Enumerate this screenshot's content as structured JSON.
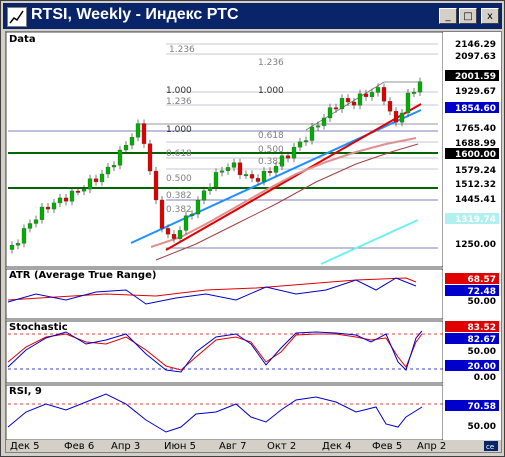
{
  "window": {
    "title": "RTSI, Weekly - Индекс РТС",
    "minimize_glyph": "_",
    "maximize_glyph": "□",
    "close_glyph": "x"
  },
  "panels": {
    "data": {
      "label": "Data"
    },
    "atr": {
      "label": "ATR (Average True Range)"
    },
    "stochastic": {
      "label": "Stochastic"
    },
    "rsi": {
      "label": "RSI, 9"
    }
  },
  "fib_labels": [
    {
      "text": "1.236"
    },
    {
      "text": "1.236"
    },
    {
      "text": "1.000"
    },
    {
      "text": "1.236"
    },
    {
      "text": "1.000"
    },
    {
      "text": "1.000"
    },
    {
      "text": "0.618"
    },
    {
      "text": "0.500"
    },
    {
      "text": "0.618"
    },
    {
      "text": "0.382"
    },
    {
      "text": "0.500"
    },
    {
      "text": "0.382"
    },
    {
      "text": "0.382"
    }
  ],
  "price_axis": {
    "labels": [
      {
        "text": "2146.29",
        "style": "plain"
      },
      {
        "text": "2097.63",
        "style": "plain"
      },
      {
        "text": "2001.59",
        "style": "black"
      },
      {
        "text": "1929.67",
        "style": "plain"
      },
      {
        "text": "1854.60",
        "style": "blue"
      },
      {
        "text": "1765.40",
        "style": "plain"
      },
      {
        "text": "1688.99",
        "style": "plain"
      },
      {
        "text": "1600.00",
        "style": "black"
      },
      {
        "text": "1579.24",
        "style": "plain"
      },
      {
        "text": "1512.32",
        "style": "plain"
      },
      {
        "text": "1445.41",
        "style": "plain"
      },
      {
        "text": "1319.74",
        "style": "cyan"
      },
      {
        "text": "1250.00",
        "style": "plain"
      }
    ]
  },
  "atr_axis": {
    "labels": [
      {
        "text": "68.57",
        "style": "red"
      },
      {
        "text": "72.48",
        "style": "blue"
      },
      {
        "text": "50.00",
        "style": "plain"
      }
    ]
  },
  "stoch_axis": {
    "labels": [
      {
        "text": "83.52",
        "style": "red"
      },
      {
        "text": "82.67",
        "style": "blue"
      },
      {
        "text": "50.00",
        "style": "plain"
      },
      {
        "text": "20.00",
        "style": "blue"
      },
      {
        "text": "0.00",
        "style": "plain"
      }
    ]
  },
  "rsi_axis": {
    "labels": [
      {
        "text": "70.58",
        "style": "blue"
      },
      {
        "text": "50.00",
        "style": "plain"
      }
    ]
  },
  "time_axis": {
    "labels": [
      {
        "text": "Дек 5"
      },
      {
        "text": "Фев 6"
      },
      {
        "text": "Апр 3"
      },
      {
        "text": "Июн 5"
      },
      {
        "text": "Авг 7"
      },
      {
        "text": "Окт 2"
      },
      {
        "text": "Дек 4"
      },
      {
        "text": "Фев 5"
      },
      {
        "text": "Апр 2"
      }
    ],
    "corner_button": "ce"
  },
  "colors": {
    "title_bar": "#0a246a",
    "candle_up": "#00b000",
    "candle_down": "#e00000",
    "trend_blue": "#1e90ff",
    "trend_red": "#e00000",
    "ma_cyan": "#70f0f0",
    "support_green": "#006400",
    "indicator_red": "#e00000",
    "indicator_blue": "#0000cc"
  },
  "chart_data": {
    "type": "candlestick",
    "title": "RTSI, Weekly - Индекс РТС",
    "x": [
      "Дек 5",
      "Фев 6",
      "Апр 3",
      "Июн 5",
      "Авг 7",
      "Окт 2",
      "Дек 4",
      "Фев 5",
      "Апр 2"
    ],
    "price_levels": [
      2146.29,
      2097.63,
      2001.59,
      1929.67,
      1854.6,
      1765.4,
      1688.99,
      1600.0,
      1579.24,
      1512.32,
      1445.41,
      1319.74,
      1250.0
    ],
    "last_close": 2001.59,
    "indicators": {
      "atr": {
        "values": [
          68.57,
          72.48
        ]
      },
      "stochastic": {
        "k": 82.67,
        "d": 83.52,
        "levels": [
          20,
          50
        ]
      },
      "rsi": {
        "period": 9,
        "value": 70.58
      }
    }
  }
}
